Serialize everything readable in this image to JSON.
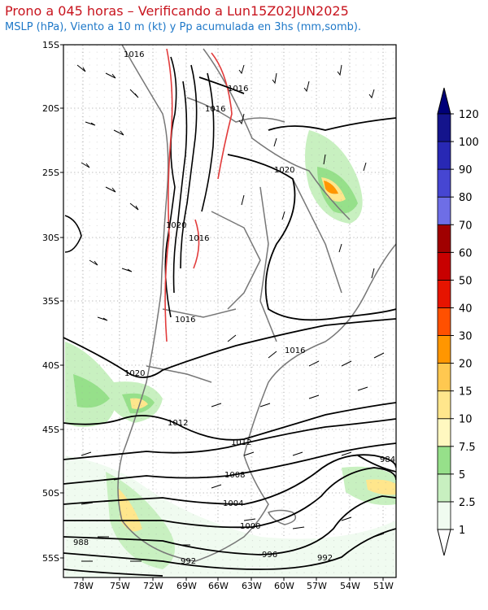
{
  "header": {
    "title": "Prono a 045 horas – Verificando a Lun15Z02JUN2025",
    "subtitle": "MSLP (hPa), Viento a 10 m (kt) y Pp acumulada en 3hs (mm,somb)."
  },
  "axes": {
    "lat_labels": [
      "15S",
      "20S",
      "25S",
      "30S",
      "35S",
      "40S",
      "45S",
      "50S",
      "55S"
    ],
    "lon_labels": [
      "78W",
      "75W",
      "72W",
      "69W",
      "66W",
      "63W",
      "60W",
      "57W",
      "54W",
      "51W"
    ]
  },
  "isobar_labels": [
    "1016",
    "1016",
    "1020",
    "1020",
    "1020",
    "1016",
    "1016",
    "1016",
    "1016",
    "1012",
    "1012",
    "1008",
    "1004",
    "1000",
    "996",
    "992",
    "992",
    "988",
    "984"
  ],
  "colorbar": {
    "levels": [
      "1",
      "2.5",
      "5",
      "7.5",
      "10",
      "15",
      "20",
      "30",
      "40",
      "50",
      "60",
      "70",
      "80",
      "90",
      "100",
      "120"
    ],
    "colors": [
      "#f0fbf0",
      "#c8f0c0",
      "#96e08a",
      "#fff8c0",
      "#ffe68c",
      "#ffc850",
      "#ff9600",
      "#ff5000",
      "#e61400",
      "#c80000",
      "#a00000",
      "#6e6ee6",
      "#4646d2",
      "#2828b4",
      "#14148c"
    ]
  }
}
